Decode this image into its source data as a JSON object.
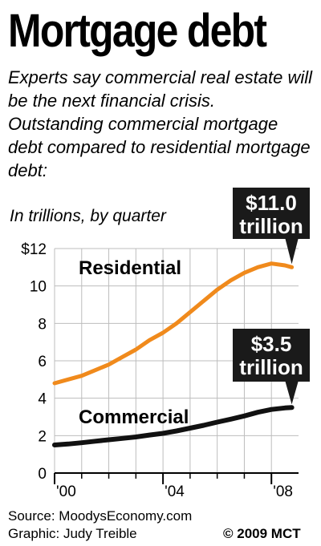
{
  "title": "Mortgage debt",
  "subtitle": "Experts say commercial real estate will be the next financial crisis. Outstanding commercial mortgage debt compared to residential mortgage debt:",
  "source": "Source: MoodysEconomy.com",
  "credit": "Graphic: Judy Treible",
  "copyright": "© 2009 MCT",
  "colors": {
    "residential": "#f08a1c",
    "commercial": "#111111",
    "grid": "#bdbdbd",
    "callout": "#1a1a1a"
  },
  "chart_data": {
    "type": "line",
    "unit_label": "In trillions, by quarter",
    "ylim": [
      0,
      12
    ],
    "y_ticks": [
      {
        "value": 12,
        "label": "$12"
      },
      {
        "value": 10,
        "label": "10"
      },
      {
        "value": 8,
        "label": "8"
      },
      {
        "value": 6,
        "label": "6"
      },
      {
        "value": 4,
        "label": "4"
      },
      {
        "value": 2,
        "label": "2"
      },
      {
        "value": 0,
        "label": "0"
      }
    ],
    "xlim": [
      2000,
      2009
    ],
    "x_ticks": [
      {
        "value": 2000,
        "label": "'00"
      },
      {
        "value": 2004,
        "label": "'04"
      },
      {
        "value": 2008,
        "label": "'08"
      }
    ],
    "x_minor_ticks": [
      2001,
      2002,
      2003,
      2005,
      2006,
      2007
    ],
    "grid": true,
    "series": [
      {
        "name": "Residential",
        "color_key": "residential",
        "x": [
          2000.0,
          2000.5,
          2001.0,
          2001.5,
          2002.0,
          2002.5,
          2003.0,
          2003.5,
          2004.0,
          2004.5,
          2005.0,
          2005.5,
          2006.0,
          2006.5,
          2007.0,
          2007.5,
          2008.0,
          2008.5,
          2008.75
        ],
        "values": [
          4.8,
          5.0,
          5.2,
          5.5,
          5.8,
          6.2,
          6.6,
          7.1,
          7.5,
          8.0,
          8.6,
          9.2,
          9.8,
          10.3,
          10.7,
          11.0,
          11.2,
          11.1,
          11.0
        ]
      },
      {
        "name": "Commercial",
        "color_key": "commercial",
        "x": [
          2000.0,
          2000.5,
          2001.0,
          2001.5,
          2002.0,
          2002.5,
          2003.0,
          2003.5,
          2004.0,
          2004.5,
          2005.0,
          2005.5,
          2006.0,
          2006.5,
          2007.0,
          2007.5,
          2008.0,
          2008.5,
          2008.75
        ],
        "values": [
          1.5,
          1.55,
          1.62,
          1.7,
          1.78,
          1.85,
          1.93,
          2.03,
          2.12,
          2.25,
          2.4,
          2.55,
          2.72,
          2.88,
          3.05,
          3.25,
          3.4,
          3.48,
          3.5
        ]
      }
    ],
    "callouts": [
      {
        "line1": "$11.0",
        "line2": "trillion",
        "series": "Residential"
      },
      {
        "line1": "$3.5",
        "line2": "trillion",
        "series": "Commercial"
      }
    ]
  }
}
